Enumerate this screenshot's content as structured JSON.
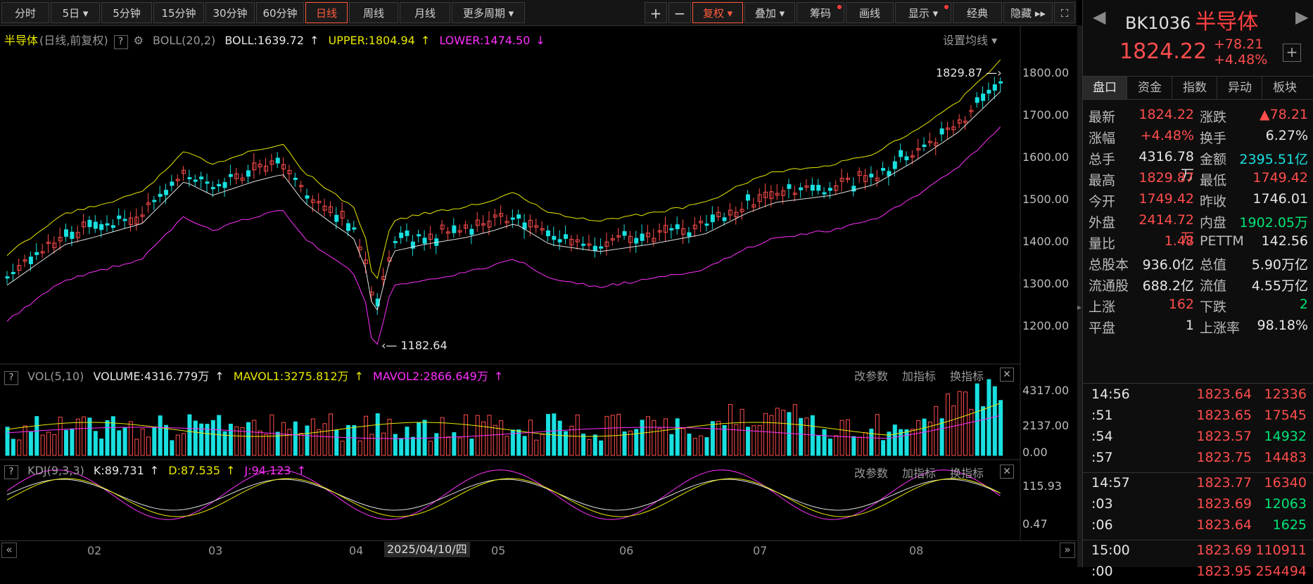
{
  "toolbar": {
    "periods": [
      "分时",
      "5日",
      "5分钟",
      "15分钟",
      "30分钟",
      "60分钟",
      "日线",
      "周线",
      "月线",
      "更多周期"
    ],
    "active_period": "日线",
    "right_tools": [
      "+",
      "−",
      "复权",
      "叠加",
      "筹码",
      "画线",
      "显示",
      "经典",
      "隐藏"
    ],
    "more_icon": "chevron-down-icon",
    "fullscreen_icon": "fullscreen-icon"
  },
  "main_legend": {
    "name": "半导体",
    "mode": "(日线,前复权)",
    "indicator": "BOLL(20,2)",
    "boll": "BOLL:1639.72",
    "upper": "UPPER:1804.94",
    "lower": "LOWER:1474.50",
    "settings": "设置均线"
  },
  "price_axis": [
    "1800.00",
    "1700.00",
    "1600.00",
    "1500.00",
    "1400.00",
    "1300.00",
    "1200.00"
  ],
  "annotations": {
    "high": "1829.87",
    "low": "1182.64"
  },
  "volume_legend": {
    "indicator": "VOL(5,10)",
    "volume": "VOLUME:4316.779万",
    "mavol1": "MAVOL1:3275.812万",
    "mavol2": "MAVOL2:2866.649万",
    "links": [
      "改参数",
      "加指标",
      "换指标"
    ]
  },
  "volume_axis": [
    "4317.00",
    "2137.00",
    "0.00"
  ],
  "kdj_legend": {
    "indicator": "KDJ(9,3,3)",
    "k": "K:89.731",
    "d": "D:87.535",
    "j": "J:94.123",
    "links": [
      "改参数",
      "加指标",
      "换指标"
    ]
  },
  "kdj_axis": [
    "115.93",
    "0.47"
  ],
  "months": [
    "02",
    "03",
    "04",
    "05",
    "06",
    "07",
    "08"
  ],
  "cursor_date": "2025/04/10/四",
  "panel": {
    "code": "BK1036",
    "name": "半导体",
    "price": "1824.22",
    "change": "+78.21",
    "change_pct": "+4.48%",
    "tabs": [
      "盘口",
      "资金",
      "指数",
      "异动",
      "板块"
    ],
    "quotes": [
      {
        "l1": "最新",
        "v1": "1824.22",
        "c1": "red",
        "l2": "涨跌",
        "v2": "▲78.21",
        "c2": "red"
      },
      {
        "l1": "涨幅",
        "v1": "+4.48%",
        "c1": "red",
        "l2": "换手",
        "v2": "6.27%",
        "c2": "white"
      },
      {
        "l1": "总手",
        "v1": "4316.78万",
        "c1": "white",
        "l2": "金额",
        "v2": "2395.51亿",
        "c2": "cyan"
      },
      {
        "l1": "最高",
        "v1": "1829.87",
        "c1": "red",
        "l2": "最低",
        "v2": "1749.42",
        "c2": "red"
      },
      {
        "l1": "今开",
        "v1": "1749.42",
        "c1": "red",
        "l2": "昨收",
        "v2": "1746.01",
        "c2": "white"
      },
      {
        "l1": "外盘",
        "v1": "2414.72万",
        "c1": "red",
        "l2": "内盘",
        "v2": "1902.05万",
        "c2": "green"
      },
      {
        "l1": "量比",
        "v1": "1.48",
        "c1": "red",
        "l2": "PETTM",
        "v2": "142.56",
        "c2": "white"
      },
      {
        "l1": "总股本",
        "v1": "936.0亿",
        "c1": "white",
        "l2": "总值",
        "v2": "5.90万亿",
        "c2": "white"
      },
      {
        "l1": "流通股",
        "v1": "688.2亿",
        "c1": "white",
        "l2": "流值",
        "v2": "4.55万亿",
        "c2": "white"
      },
      {
        "l1": "上涨",
        "v1": "162",
        "c1": "red",
        "l2": "下跌",
        "v2": "2",
        "c2": "green"
      },
      {
        "l1": "平盘",
        "v1": "1",
        "c1": "white",
        "l2": "上涨率",
        "v2": "98.18%",
        "c2": "white"
      }
    ],
    "ticks": [
      {
        "t": "14:56",
        "p": "1823.64",
        "v": "12336",
        "vc": "red"
      },
      {
        "t": ":51",
        "p": "1823.65",
        "v": "17545",
        "vc": "red"
      },
      {
        "t": ":54",
        "p": "1823.57",
        "v": "14932",
        "vc": "green"
      },
      {
        "t": ":57",
        "p": "1823.75",
        "v": "14483",
        "vc": "red"
      },
      {
        "t": "14:57",
        "p": "1823.77",
        "v": "16340",
        "vc": "red"
      },
      {
        "t": ":03",
        "p": "1823.69",
        "v": "12063",
        "vc": "green"
      },
      {
        "t": ":06",
        "p": "1823.64",
        "v": "1625",
        "vc": "green"
      },
      {
        "t": "15:00",
        "p": "1823.69",
        "v": "110911",
        "vc": "red"
      },
      {
        "t": ":00",
        "p": "1823.95",
        "v": "254494",
        "vc": "red"
      }
    ]
  },
  "colors": {
    "up": "#ff4d4d",
    "down": "#19e0e0",
    "boll_mid": "#e0e0e0",
    "boll_upper": "#e8e800",
    "boll_lower": "#ff2fff"
  }
}
